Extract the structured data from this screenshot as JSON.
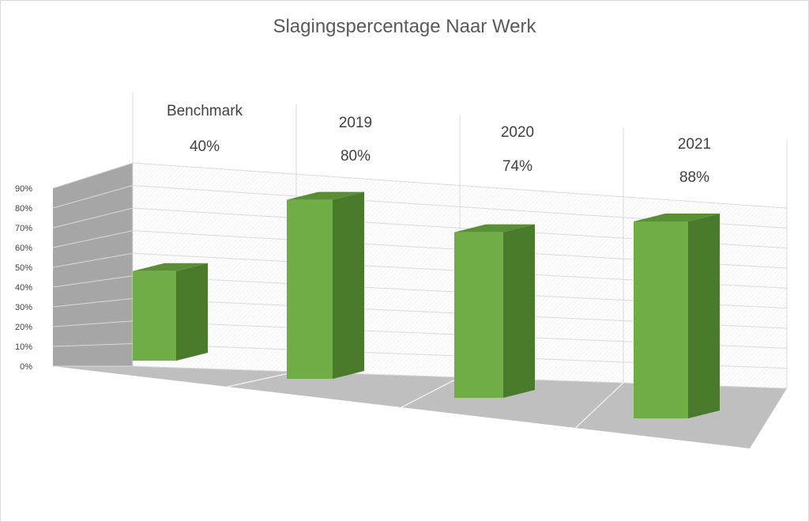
{
  "chart_data": {
    "type": "bar",
    "title": "Slagingspercentage Naar Werk",
    "categories": [
      "Benchmark",
      "2019",
      "2020",
      "2021"
    ],
    "values": [
      40,
      80,
      74,
      88
    ],
    "value_labels": [
      "40%",
      "80%",
      "74%",
      "88%"
    ],
    "ylim": [
      0,
      90
    ],
    "yticks": [
      "0%",
      "10%",
      "20%",
      "30%",
      "40%",
      "50%",
      "60%",
      "70%",
      "80%",
      "90%"
    ],
    "grid": true,
    "colors": {
      "bar_front": "#70ad47",
      "bar_side": "#4a7a2c",
      "bar_top": "#5a8f35",
      "floor": "#bfbfbf",
      "wall_left": "#a6a6a6",
      "grid": "#d9d9d9"
    }
  }
}
